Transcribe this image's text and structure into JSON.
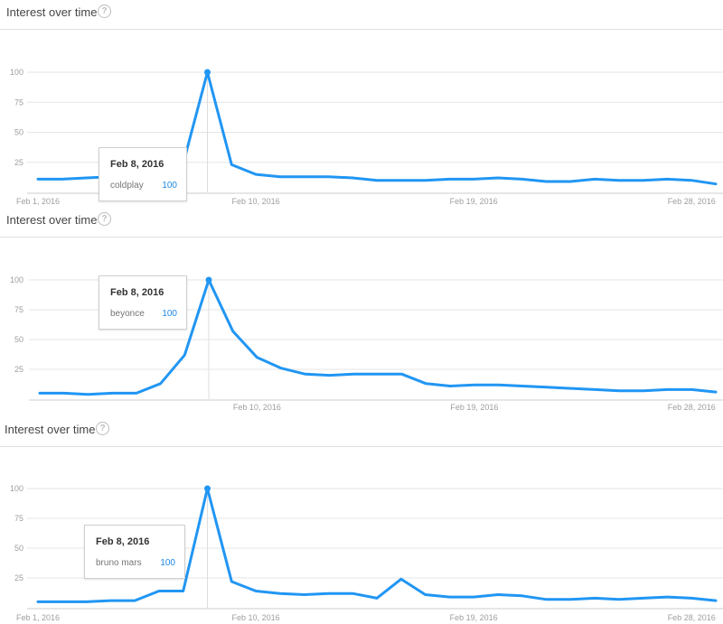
{
  "chart_data": [
    {
      "type": "line",
      "title": "Interest over time",
      "x": [
        "Feb 1, 2016",
        "Feb 2, 2016",
        "Feb 3, 2016",
        "Feb 4, 2016",
        "Feb 5, 2016",
        "Feb 6, 2016",
        "Feb 7, 2016",
        "Feb 8, 2016",
        "Feb 9, 2016",
        "Feb 10, 2016",
        "Feb 11, 2016",
        "Feb 12, 2016",
        "Feb 13, 2016",
        "Feb 14, 2016",
        "Feb 15, 2016",
        "Feb 16, 2016",
        "Feb 17, 2016",
        "Feb 18, 2016",
        "Feb 19, 2016",
        "Feb 20, 2016",
        "Feb 21, 2016",
        "Feb 22, 2016",
        "Feb 23, 2016",
        "Feb 24, 2016",
        "Feb 25, 2016",
        "Feb 26, 2016",
        "Feb 27, 2016",
        "Feb 28, 2016",
        "Feb 29, 2016"
      ],
      "x_ticks": [
        "Feb 1, 2016",
        "Feb 10, 2016",
        "Feb 19, 2016",
        "Feb 28, 2016"
      ],
      "y_ticks": [
        25,
        50,
        75,
        100
      ],
      "ylim": [
        0,
        100
      ],
      "grid": true,
      "series": [
        {
          "name": "coldplay",
          "color": "#2196f3",
          "values": [
            11,
            11,
            12,
            13,
            15,
            17,
            24,
            100,
            23,
            15,
            13,
            13,
            13,
            12,
            10,
            10,
            10,
            11,
            11,
            12,
            11,
            9,
            9,
            11,
            10,
            10,
            11,
            10,
            7
          ]
        }
      ],
      "tooltip": {
        "date": "Feb 8, 2016",
        "term": "coldplay",
        "value": "100"
      }
    },
    {
      "type": "line",
      "title": "Interest over time",
      "x": [
        "Feb 1, 2016",
        "Feb 2, 2016",
        "Feb 3, 2016",
        "Feb 4, 2016",
        "Feb 5, 2016",
        "Feb 6, 2016",
        "Feb 7, 2016",
        "Feb 8, 2016",
        "Feb 9, 2016",
        "Feb 10, 2016",
        "Feb 11, 2016",
        "Feb 12, 2016",
        "Feb 13, 2016",
        "Feb 14, 2016",
        "Feb 15, 2016",
        "Feb 16, 2016",
        "Feb 17, 2016",
        "Feb 18, 2016",
        "Feb 19, 2016",
        "Feb 20, 2016",
        "Feb 21, 2016",
        "Feb 22, 2016",
        "Feb 23, 2016",
        "Feb 24, 2016",
        "Feb 25, 2016",
        "Feb 26, 2016",
        "Feb 27, 2016",
        "Feb 28, 2016",
        "Feb 29, 2016"
      ],
      "x_ticks": [
        "Feb 10, 2016",
        "Feb 19, 2016",
        "Feb 28, 2016"
      ],
      "y_ticks": [
        25,
        50,
        75,
        100
      ],
      "ylim": [
        0,
        100
      ],
      "grid": true,
      "series": [
        {
          "name": "beyonce",
          "color": "#2196f3",
          "values": [
            5,
            5,
            4,
            5,
            5,
            13,
            37,
            100,
            57,
            35,
            26,
            21,
            20,
            21,
            21,
            21,
            13,
            11,
            12,
            12,
            11,
            10,
            9,
            8,
            7,
            7,
            8,
            8,
            6
          ]
        }
      ],
      "tooltip": {
        "date": "Feb 8, 2016",
        "term": "beyonce",
        "value": "100"
      }
    },
    {
      "type": "line",
      "title": "Interest over time",
      "x": [
        "Feb 1, 2016",
        "Feb 2, 2016",
        "Feb 3, 2016",
        "Feb 4, 2016",
        "Feb 5, 2016",
        "Feb 6, 2016",
        "Feb 7, 2016",
        "Feb 8, 2016",
        "Feb 9, 2016",
        "Feb 10, 2016",
        "Feb 11, 2016",
        "Feb 12, 2016",
        "Feb 13, 2016",
        "Feb 14, 2016",
        "Feb 15, 2016",
        "Feb 16, 2016",
        "Feb 17, 2016",
        "Feb 18, 2016",
        "Feb 19, 2016",
        "Feb 20, 2016",
        "Feb 21, 2016",
        "Feb 22, 2016",
        "Feb 23, 2016",
        "Feb 24, 2016",
        "Feb 25, 2016",
        "Feb 26, 2016",
        "Feb 27, 2016",
        "Feb 28, 2016",
        "Feb 29, 2016"
      ],
      "x_ticks": [
        "Feb 1, 2016",
        "Feb 10, 2016",
        "Feb 19, 2016",
        "Feb 28, 2016"
      ],
      "y_ticks": [
        25,
        50,
        75,
        100
      ],
      "ylim": [
        0,
        100
      ],
      "grid": true,
      "series": [
        {
          "name": "bruno mars",
          "color": "#2196f3",
          "values": [
            5,
            5,
            5,
            6,
            6,
            14,
            14,
            100,
            22,
            14,
            12,
            11,
            12,
            12,
            8,
            24,
            11,
            9,
            9,
            11,
            10,
            7,
            7,
            8,
            7,
            8,
            9,
            8,
            6
          ]
        }
      ],
      "tooltip": {
        "date": "Feb 8, 2016",
        "term": "bruno mars",
        "value": "100"
      }
    }
  ]
}
